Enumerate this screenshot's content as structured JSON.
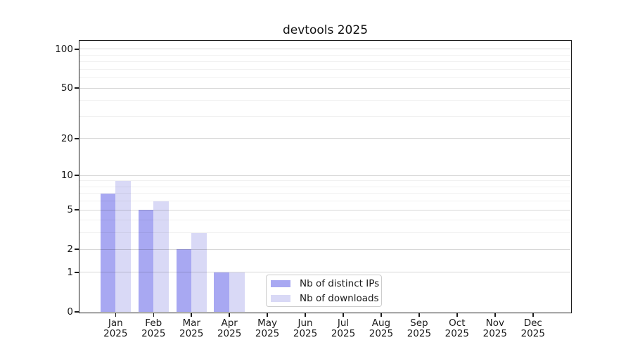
{
  "title": "devtools 2025",
  "legend": {
    "position": "lower center",
    "items": [
      {
        "label": "Nb of distinct IPs",
        "color": "#a8a8f2"
      },
      {
        "label": "Nb of downloads",
        "color": "#d9d9f6"
      }
    ]
  },
  "chart_data": {
    "type": "bar",
    "title": "devtools 2025",
    "categories": [
      "Jan 2025",
      "Feb 2025",
      "Mar 2025",
      "Apr 2025",
      "May 2025",
      "Jun 2025",
      "Jul 2025",
      "Aug 2025",
      "Sep 2025",
      "Oct 2025",
      "Nov 2025",
      "Dec 2025"
    ],
    "series": [
      {
        "name": "Nb of distinct IPs",
        "color": "#a8a8f2",
        "values": [
          7,
          5,
          2,
          1,
          0,
          0,
          0,
          0,
          0,
          0,
          0,
          0
        ]
      },
      {
        "name": "Nb of downloads",
        "color": "#d9d9f6",
        "values": [
          9,
          6,
          3,
          1,
          0,
          0,
          0,
          0,
          0,
          0,
          0,
          0
        ]
      }
    ],
    "xlabel": "",
    "ylabel": "",
    "yaxis": {
      "scale": "symlog ln(1+y)",
      "tick_values": [
        0,
        1,
        2,
        5,
        10,
        20,
        50,
        100
      ],
      "minor_gridline_values": [
        3,
        4,
        6,
        7,
        8,
        9,
        30,
        40,
        60,
        70,
        80,
        90
      ],
      "ylim": [
        0,
        116
      ]
    },
    "grid": "horizontal major+minor, drawn over bars",
    "legend_position": "lower center",
    "colors": {
      "spine": "#1c1c1c",
      "major_grid": "#d8d8d8",
      "minor_grid": "#efefef",
      "background": "#ffffff"
    }
  }
}
